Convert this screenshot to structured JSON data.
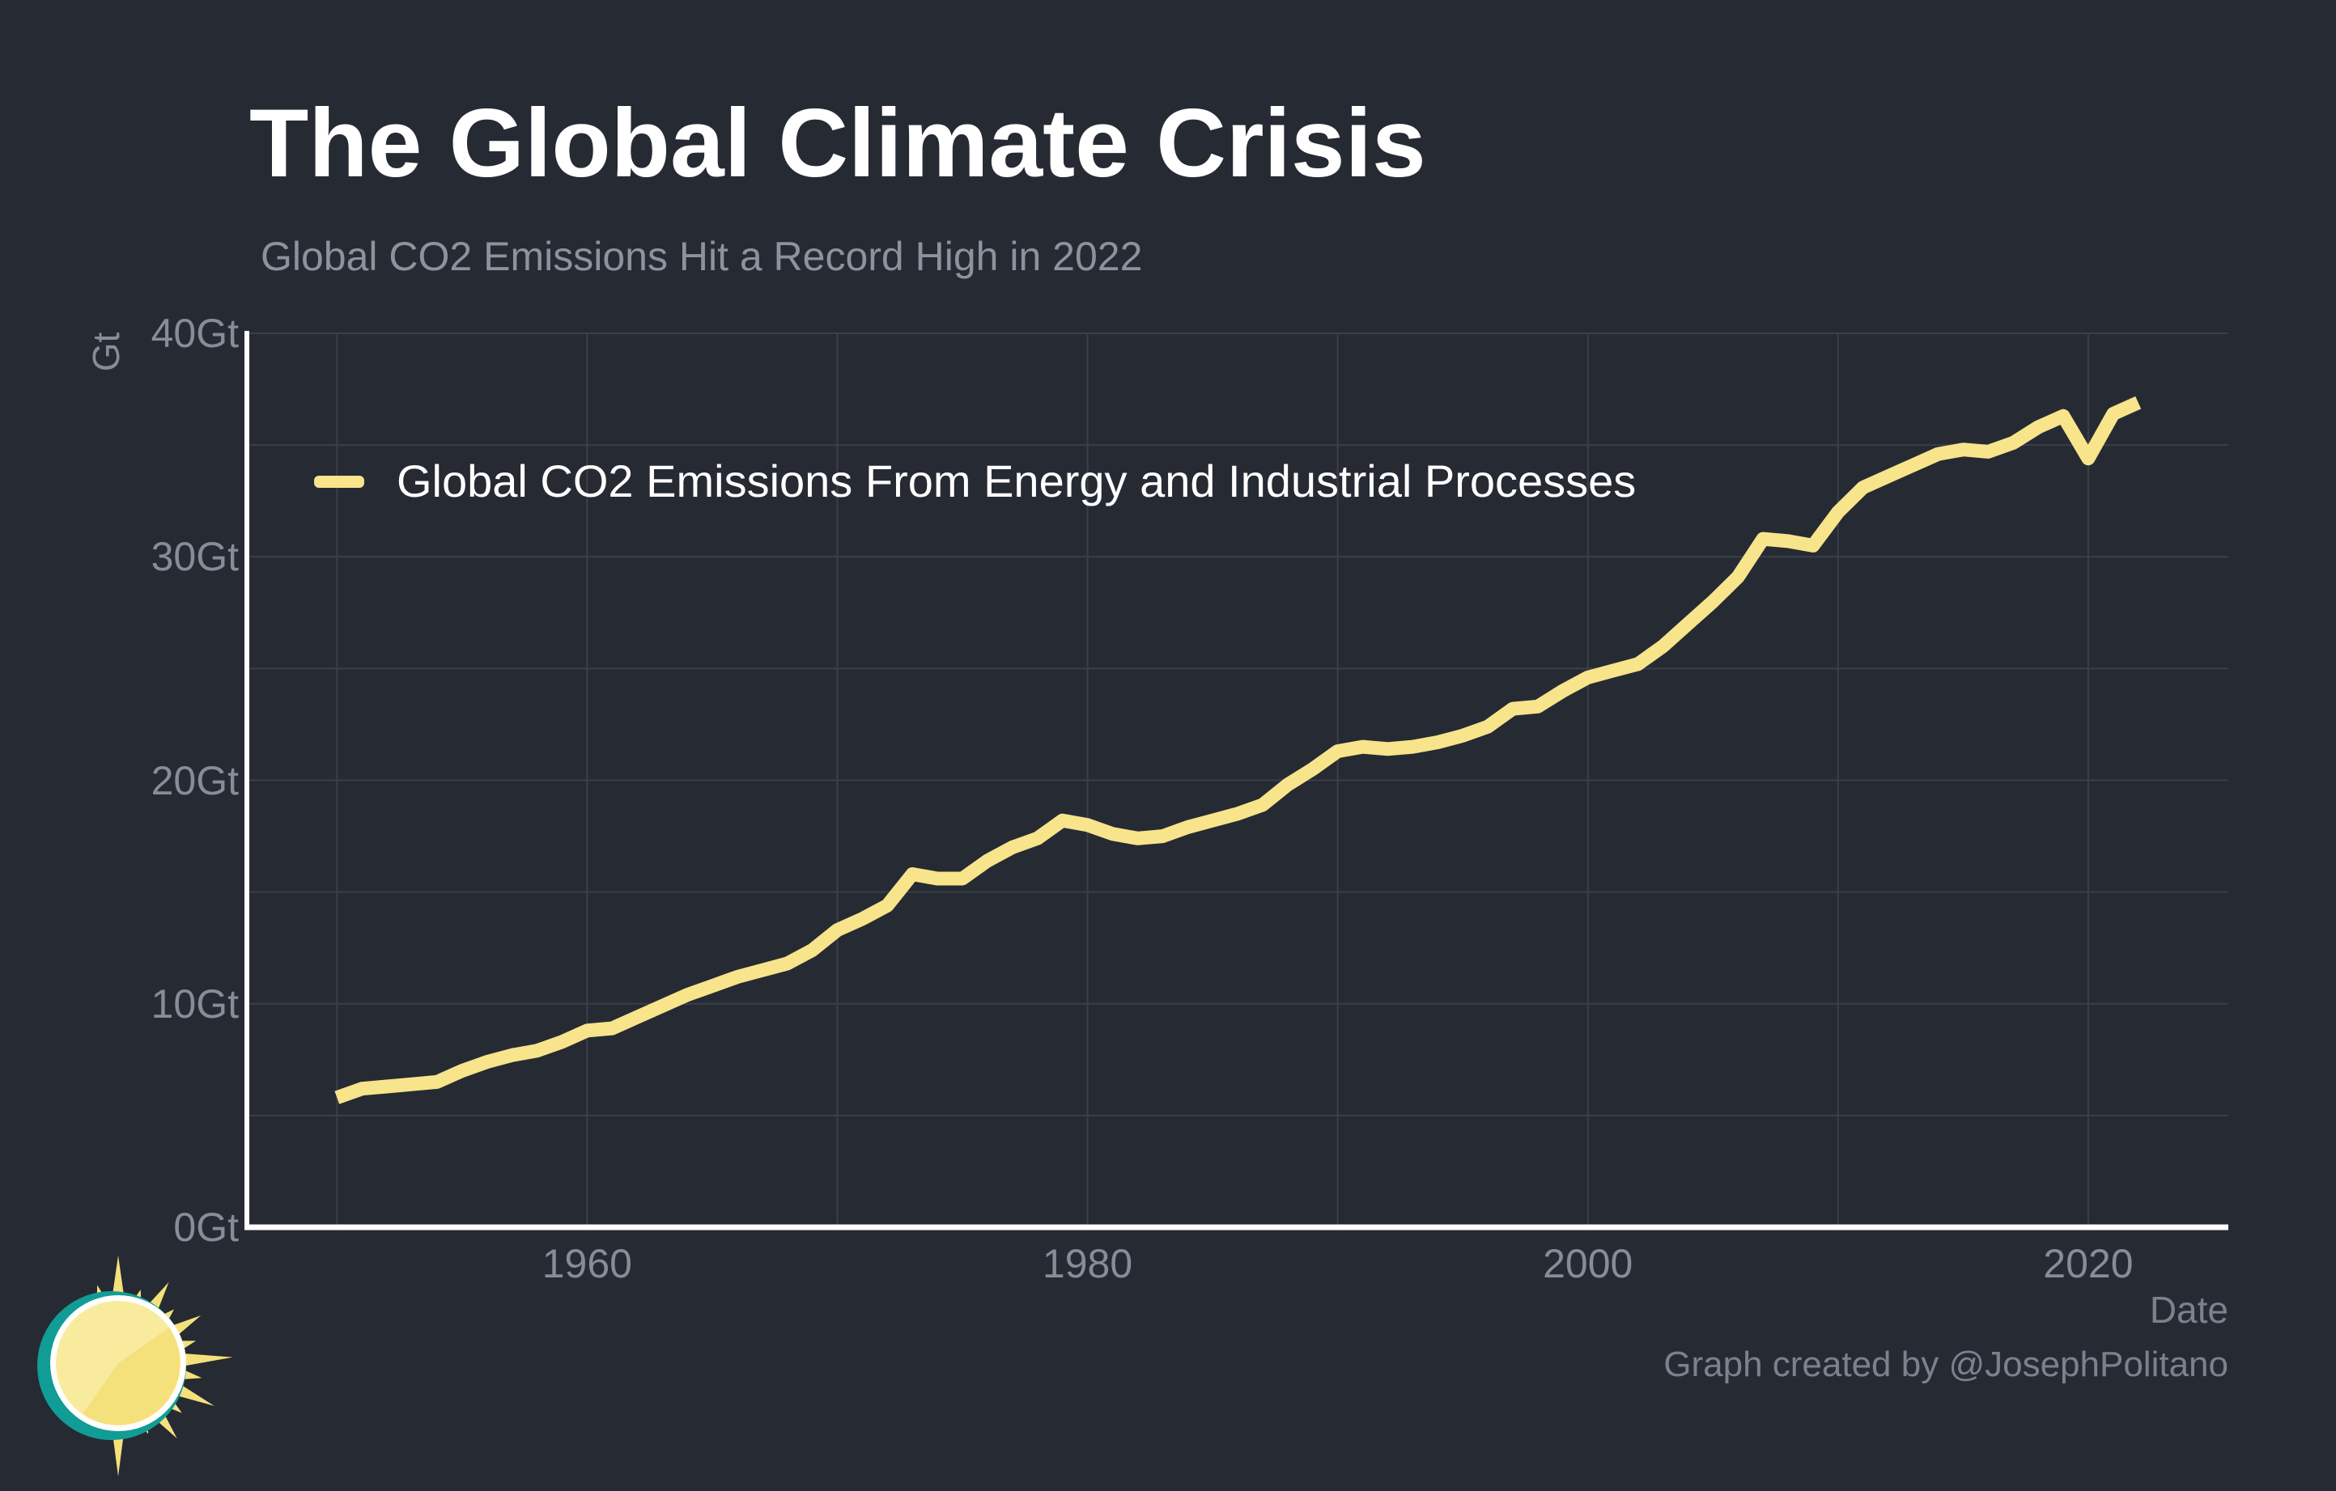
{
  "header": {
    "title": "The Global Climate Crisis",
    "subtitle": "Global CO2 Emissions Hit a Record High in 2022"
  },
  "footer": {
    "credit": "Graph created by @JosephPolitano"
  },
  "colors": {
    "background": "#262a33",
    "gridline": "#3a3f48",
    "axis_line": "#ffffff",
    "series_line": "#f7e48b",
    "title_text": "#ffffff",
    "subtitle_text": "#8d939c",
    "tick_text": "#868d97",
    "axis_title_text": "#7b828c",
    "logo_teal": "#129c96",
    "logo_sun_yellow": "#f5e17c",
    "logo_sun_light": "#f9eb9e",
    "logo_ring_white": "#ffffff"
  },
  "chart_data": {
    "type": "line",
    "title": "The Global Climate Crisis",
    "subtitle": "Global CO2 Emissions Hit a Record High in 2022",
    "xlabel": "Date",
    "ylabel": "Gt",
    "xlim": [
      1946.4,
      2025.6
    ],
    "ylim": [
      0,
      40
    ],
    "grid": "on",
    "legend_position": "top-left-inside",
    "x_ticks": [
      {
        "value": 1960,
        "label": "1960"
      },
      {
        "value": 1980,
        "label": "1980"
      },
      {
        "value": 2000,
        "label": "2000"
      },
      {
        "value": 2020,
        "label": "2020"
      }
    ],
    "y_ticks": [
      {
        "value": 0,
        "label": "0Gt"
      },
      {
        "value": 10,
        "label": "10Gt"
      },
      {
        "value": 20,
        "label": "20Gt"
      },
      {
        "value": 30,
        "label": "30Gt"
      },
      {
        "value": 40,
        "label": "40Gt"
      }
    ],
    "x_gridlines": [
      1950,
      1960,
      1970,
      1980,
      1990,
      2000,
      2010,
      2020
    ],
    "y_gridlines": [
      5,
      10,
      15,
      20,
      25,
      30,
      35,
      40
    ],
    "series": [
      {
        "name": "Global CO2 Emissions From Energy and Industrial Processes",
        "color": "#f7e48b",
        "x": [
          1950,
          1951,
          1952,
          1953,
          1954,
          1955,
          1956,
          1957,
          1958,
          1959,
          1960,
          1961,
          1962,
          1963,
          1964,
          1965,
          1966,
          1967,
          1968,
          1969,
          1970,
          1971,
          1972,
          1973,
          1974,
          1975,
          1976,
          1977,
          1978,
          1979,
          1980,
          1981,
          1982,
          1983,
          1984,
          1985,
          1986,
          1987,
          1988,
          1989,
          1990,
          1991,
          1992,
          1993,
          1994,
          1995,
          1996,
          1997,
          1998,
          1999,
          2000,
          2001,
          2002,
          2003,
          2004,
          2005,
          2006,
          2007,
          2008,
          2009,
          2010,
          2011,
          2012,
          2013,
          2014,
          2015,
          2016,
          2017,
          2018,
          2019,
          2020,
          2021,
          2022
        ],
        "values": [
          5.8,
          6.2,
          6.3,
          6.4,
          6.5,
          7.0,
          7.4,
          7.7,
          7.9,
          8.3,
          8.8,
          8.9,
          9.4,
          9.9,
          10.4,
          10.8,
          11.2,
          11.5,
          11.8,
          12.4,
          13.3,
          13.8,
          14.4,
          15.8,
          15.6,
          15.6,
          16.4,
          17.0,
          17.4,
          18.2,
          18.0,
          17.6,
          17.4,
          17.5,
          17.9,
          18.2,
          18.5,
          18.9,
          19.8,
          20.5,
          21.3,
          21.5,
          21.4,
          21.5,
          21.7,
          22.0,
          22.4,
          23.2,
          23.3,
          24.0,
          24.6,
          24.9,
          25.2,
          26.0,
          27.0,
          28.0,
          29.1,
          30.8,
          30.7,
          30.5,
          32.0,
          33.1,
          33.6,
          34.1,
          34.6,
          34.8,
          34.7,
          35.1,
          35.8,
          36.3,
          34.4,
          36.4,
          36.9
        ]
      }
    ]
  }
}
